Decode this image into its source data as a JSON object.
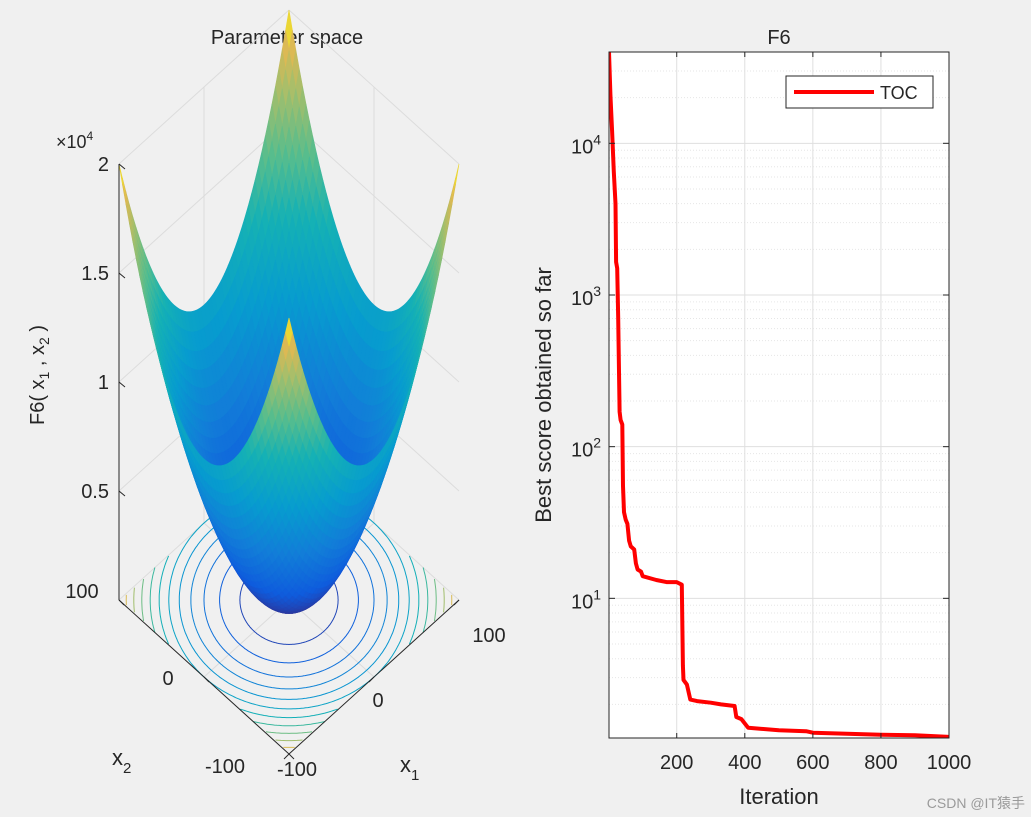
{
  "watermark": "CSDN @IT猿手",
  "chart_data": [
    {
      "type": "surface",
      "title": "Parameter space",
      "function": "F6",
      "xlabel": "x",
      "xlabel_sub": "1",
      "ylabel": "x",
      "ylabel_sub": "2",
      "zlabel_prefix": "F6( x",
      "zlabel_sub1": "1",
      "zlabel_mid": " , x",
      "zlabel_sub2": "2",
      "zlabel_suffix": " )",
      "x_range": [
        -100,
        100
      ],
      "y_range": [
        -100,
        100
      ],
      "z_range": [
        0,
        20000
      ],
      "x_ticks": [
        "-100",
        "0",
        "100"
      ],
      "y_ticks": [
        "-100",
        "0",
        "100"
      ],
      "z_ticks": [
        "0.5",
        "1",
        "1.5",
        "2"
      ],
      "z_exponent": "×10",
      "z_exponent_power": "4",
      "contour_levels": 12,
      "grid": true
    },
    {
      "type": "line",
      "title": "F6",
      "xlabel": "Iteration",
      "ylabel": "Best score obtained so far",
      "xlim": [
        1,
        1000
      ],
      "ylim": [
        1.2,
        40000
      ],
      "yscale": "log",
      "x_ticks": [
        "200",
        "400",
        "600",
        "800",
        "1000"
      ],
      "x_tick_values": [
        200,
        400,
        600,
        800,
        1000
      ],
      "y_ticks": [
        {
          "base": "10",
          "exp": "1",
          "value": 10
        },
        {
          "base": "10",
          "exp": "2",
          "value": 100
        },
        {
          "base": "10",
          "exp": "3",
          "value": 1000
        },
        {
          "base": "10",
          "exp": "4",
          "value": 10000
        }
      ],
      "grid": true,
      "legend_position": "top-right",
      "series": [
        {
          "name": "TOC",
          "color": "#ff0000",
          "points": [
            [
              1,
              40000
            ],
            [
              5,
              21000
            ],
            [
              10,
              12000
            ],
            [
              15,
              6500
            ],
            [
              20,
              4000
            ],
            [
              22,
              1650
            ],
            [
              25,
              1500
            ],
            [
              28,
              700
            ],
            [
              32,
              170
            ],
            [
              35,
              150
            ],
            [
              40,
              140
            ],
            [
              42,
              55
            ],
            [
              45,
              37
            ],
            [
              50,
              33
            ],
            [
              55,
              31
            ],
            [
              60,
              24
            ],
            [
              65,
              22
            ],
            [
              75,
              21
            ],
            [
              80,
              17
            ],
            [
              85,
              15.5
            ],
            [
              95,
              15
            ],
            [
              100,
              14
            ],
            [
              140,
              13.2
            ],
            [
              170,
              12.8
            ],
            [
              200,
              12.8
            ],
            [
              215,
              12.3
            ],
            [
              218,
              3.6
            ],
            [
              220,
              2.9
            ],
            [
              230,
              2.7
            ],
            [
              240,
              2.15
            ],
            [
              260,
              2.1
            ],
            [
              300,
              2.05
            ],
            [
              330,
              2.0
            ],
            [
              370,
              1.95
            ],
            [
              375,
              1.65
            ],
            [
              390,
              1.6
            ],
            [
              410,
              1.4
            ],
            [
              500,
              1.35
            ],
            [
              580,
              1.33
            ],
            [
              600,
              1.3
            ],
            [
              700,
              1.28
            ],
            [
              800,
              1.26
            ],
            [
              900,
              1.25
            ],
            [
              1000,
              1.22
            ]
          ]
        }
      ]
    }
  ]
}
